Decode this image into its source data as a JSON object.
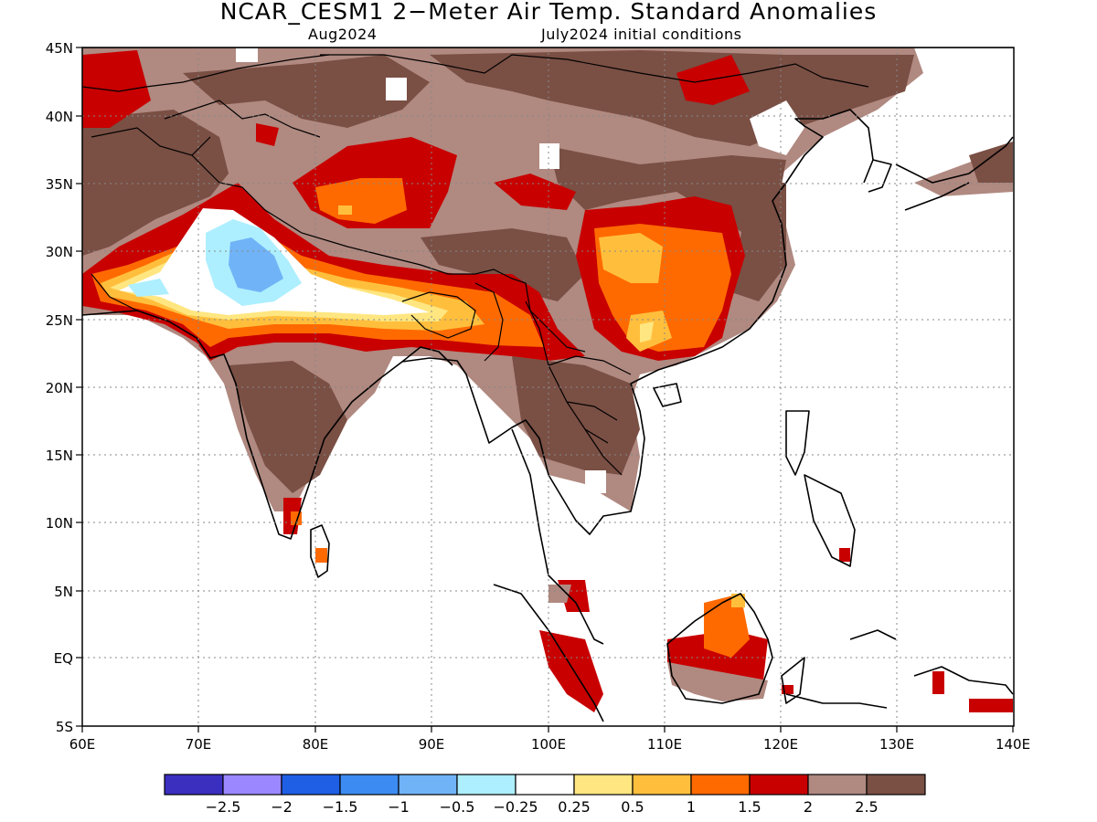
{
  "title": "NCAR_CESM1 2−Meter Air Temp. Standard Anomalies",
  "subtitle_left": "Aug2024",
  "subtitle_right": "July2024 initial conditions",
  "map": {
    "lon_range": [
      60,
      140
    ],
    "lat_range": [
      -5,
      45
    ],
    "lon_ticks": [
      "60E",
      "70E",
      "80E",
      "90E",
      "100E",
      "110E",
      "120E",
      "130E",
      "140E"
    ],
    "lat_ticks": [
      "45N",
      "40N",
      "35N",
      "30N",
      "25N",
      "20N",
      "15N",
      "10N",
      "5N",
      "EQ",
      "5S"
    ],
    "grid": "dotted"
  },
  "colorbar": {
    "colors": [
      "#3b2fbf",
      "#9b87ff",
      "#1f5fe6",
      "#3c8bf2",
      "#70b3f7",
      "#adefff",
      "#ffffff",
      "#ffe680",
      "#ffbf3d",
      "#ff6a00",
      "#c80000",
      "#b08980",
      "#7a4f44"
    ],
    "labels": [
      "−2.5",
      "−2",
      "−1.5",
      "−1",
      "−0.5",
      "−0.25",
      "0.25",
      "0.5",
      "1",
      "1.5",
      "2",
      "2.5"
    ]
  }
}
